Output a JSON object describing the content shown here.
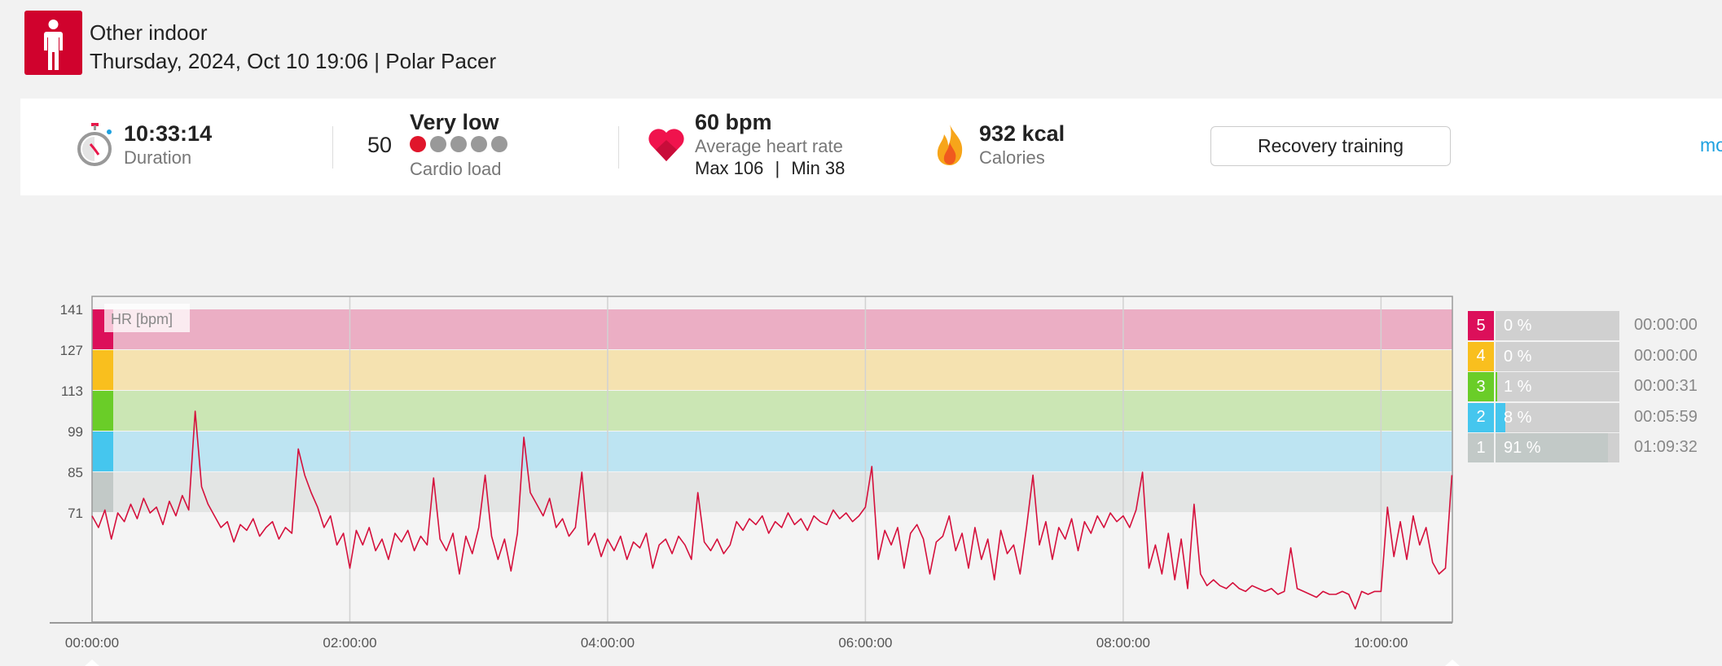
{
  "header": {
    "sport_icon": "person-standing-icon",
    "title": "Other indoor",
    "subtitle": "Thursday, 2024, Oct 10 19:06 | Polar Pacer"
  },
  "summary": {
    "duration": {
      "icon": "stopwatch-icon",
      "value": "10:33:14",
      "label": "Duration"
    },
    "cardio_load": {
      "value": "50",
      "level": "Very low",
      "label": "Cardio load",
      "dots_filled": 1,
      "dots_total": 5
    },
    "heart_rate": {
      "icon": "heart-icon",
      "value": "60 bpm",
      "label": "Average heart rate",
      "max_label": "Max 106",
      "separator": "|",
      "min_label": "Min 38"
    },
    "calories": {
      "icon": "flame-icon",
      "value": "932 kcal",
      "label": "Calories"
    },
    "benefit_button": "Recovery training",
    "more_link": "mo"
  },
  "colors": {
    "accent": "#d0022d",
    "link": "#1da1e0",
    "line": "#d5103c",
    "zone5": "#dc0f5a",
    "zone4": "#f9bf1e",
    "zone3": "#6acd28",
    "zone2": "#45c6ee",
    "zone1": "#c2c9c7",
    "band5": "#ebaec4",
    "band4": "#f5e2b0",
    "band3": "#cbe6b4",
    "band2": "#bde4f2",
    "band1": "#e3e5e4"
  },
  "chart_data": {
    "type": "line",
    "title": "",
    "series_label": "HR [bpm]",
    "xlabel": "",
    "ylabel": "HR [bpm]",
    "x_unit": "minutes",
    "xlim": [
      0,
      633.23
    ],
    "ylim": [
      33.5,
      144.5
    ],
    "x_ticks": [
      {
        "value": 0,
        "label": "00:00:00"
      },
      {
        "value": 120,
        "label": "02:00:00"
      },
      {
        "value": 240,
        "label": "04:00:00"
      },
      {
        "value": 360,
        "label": "06:00:00"
      },
      {
        "value": 480,
        "label": "08:00:00"
      },
      {
        "value": 600,
        "label": "10:00:00"
      }
    ],
    "y_ticks": [
      141,
      127,
      113,
      99,
      85,
      71
    ],
    "zones": [
      {
        "zone": "5",
        "from": 127,
        "to": 141,
        "percent": "0 %",
        "fraction": 0.0,
        "time": "00:00:00"
      },
      {
        "zone": "4",
        "from": 113,
        "to": 127,
        "percent": "0 %",
        "fraction": 0.0,
        "time": "00:00:00"
      },
      {
        "zone": "3",
        "from": 99,
        "to": 113,
        "percent": "1 %",
        "fraction": 0.01,
        "time": "00:00:31"
      },
      {
        "zone": "2",
        "from": 85,
        "to": 99,
        "percent": "8 %",
        "fraction": 0.08,
        "time": "00:05:59"
      },
      {
        "zone": "1",
        "from": 71,
        "to": 85,
        "percent": "91 %",
        "fraction": 0.91,
        "time": "01:09:32"
      }
    ],
    "series": [
      {
        "name": "HR",
        "interval_min": 3,
        "values": [
          70,
          66,
          72,
          62,
          71,
          68,
          74,
          69,
          76,
          71,
          73,
          67,
          75,
          70,
          77,
          72,
          106,
          80,
          74,
          70,
          66,
          68,
          61,
          67,
          65,
          69,
          63,
          66,
          68,
          62,
          66,
          64,
          93,
          84,
          78,
          73,
          66,
          70,
          60,
          64,
          52,
          65,
          60,
          66,
          58,
          62,
          55,
          64,
          61,
          65,
          58,
          63,
          60,
          83,
          62,
          58,
          64,
          50,
          63,
          57,
          66,
          84,
          63,
          55,
          62,
          51,
          64,
          97,
          78,
          74,
          70,
          76,
          66,
          69,
          63,
          66,
          85,
          60,
          64,
          56,
          62,
          58,
          63,
          55,
          61,
          59,
          64,
          52,
          60,
          62,
          57,
          63,
          60,
          55,
          78,
          61,
          58,
          62,
          57,
          60,
          68,
          65,
          69,
          67,
          70,
          64,
          68,
          66,
          71,
          67,
          69,
          65,
          70,
          68,
          67,
          72,
          69,
          71,
          68,
          70,
          73,
          87,
          55,
          65,
          60,
          66,
          52,
          64,
          67,
          62,
          50,
          61,
          63,
          70,
          58,
          64,
          52,
          66,
          55,
          62,
          48,
          65,
          57,
          60,
          50,
          66,
          84,
          60,
          68,
          55,
          66,
          62,
          69,
          58,
          68,
          64,
          70,
          66,
          71,
          68,
          70,
          66,
          72,
          85,
          52,
          60,
          50,
          64,
          48,
          62,
          45,
          74,
          50,
          46,
          48,
          46,
          45,
          47,
          45,
          44,
          46,
          45,
          44,
          45,
          43,
          44,
          59,
          45,
          44,
          43,
          42,
          44,
          43,
          43,
          44,
          43,
          38,
          44,
          43,
          44,
          44,
          73,
          56,
          68,
          55,
          70,
          60,
          66,
          54,
          50,
          52,
          84
        ]
      }
    ]
  }
}
